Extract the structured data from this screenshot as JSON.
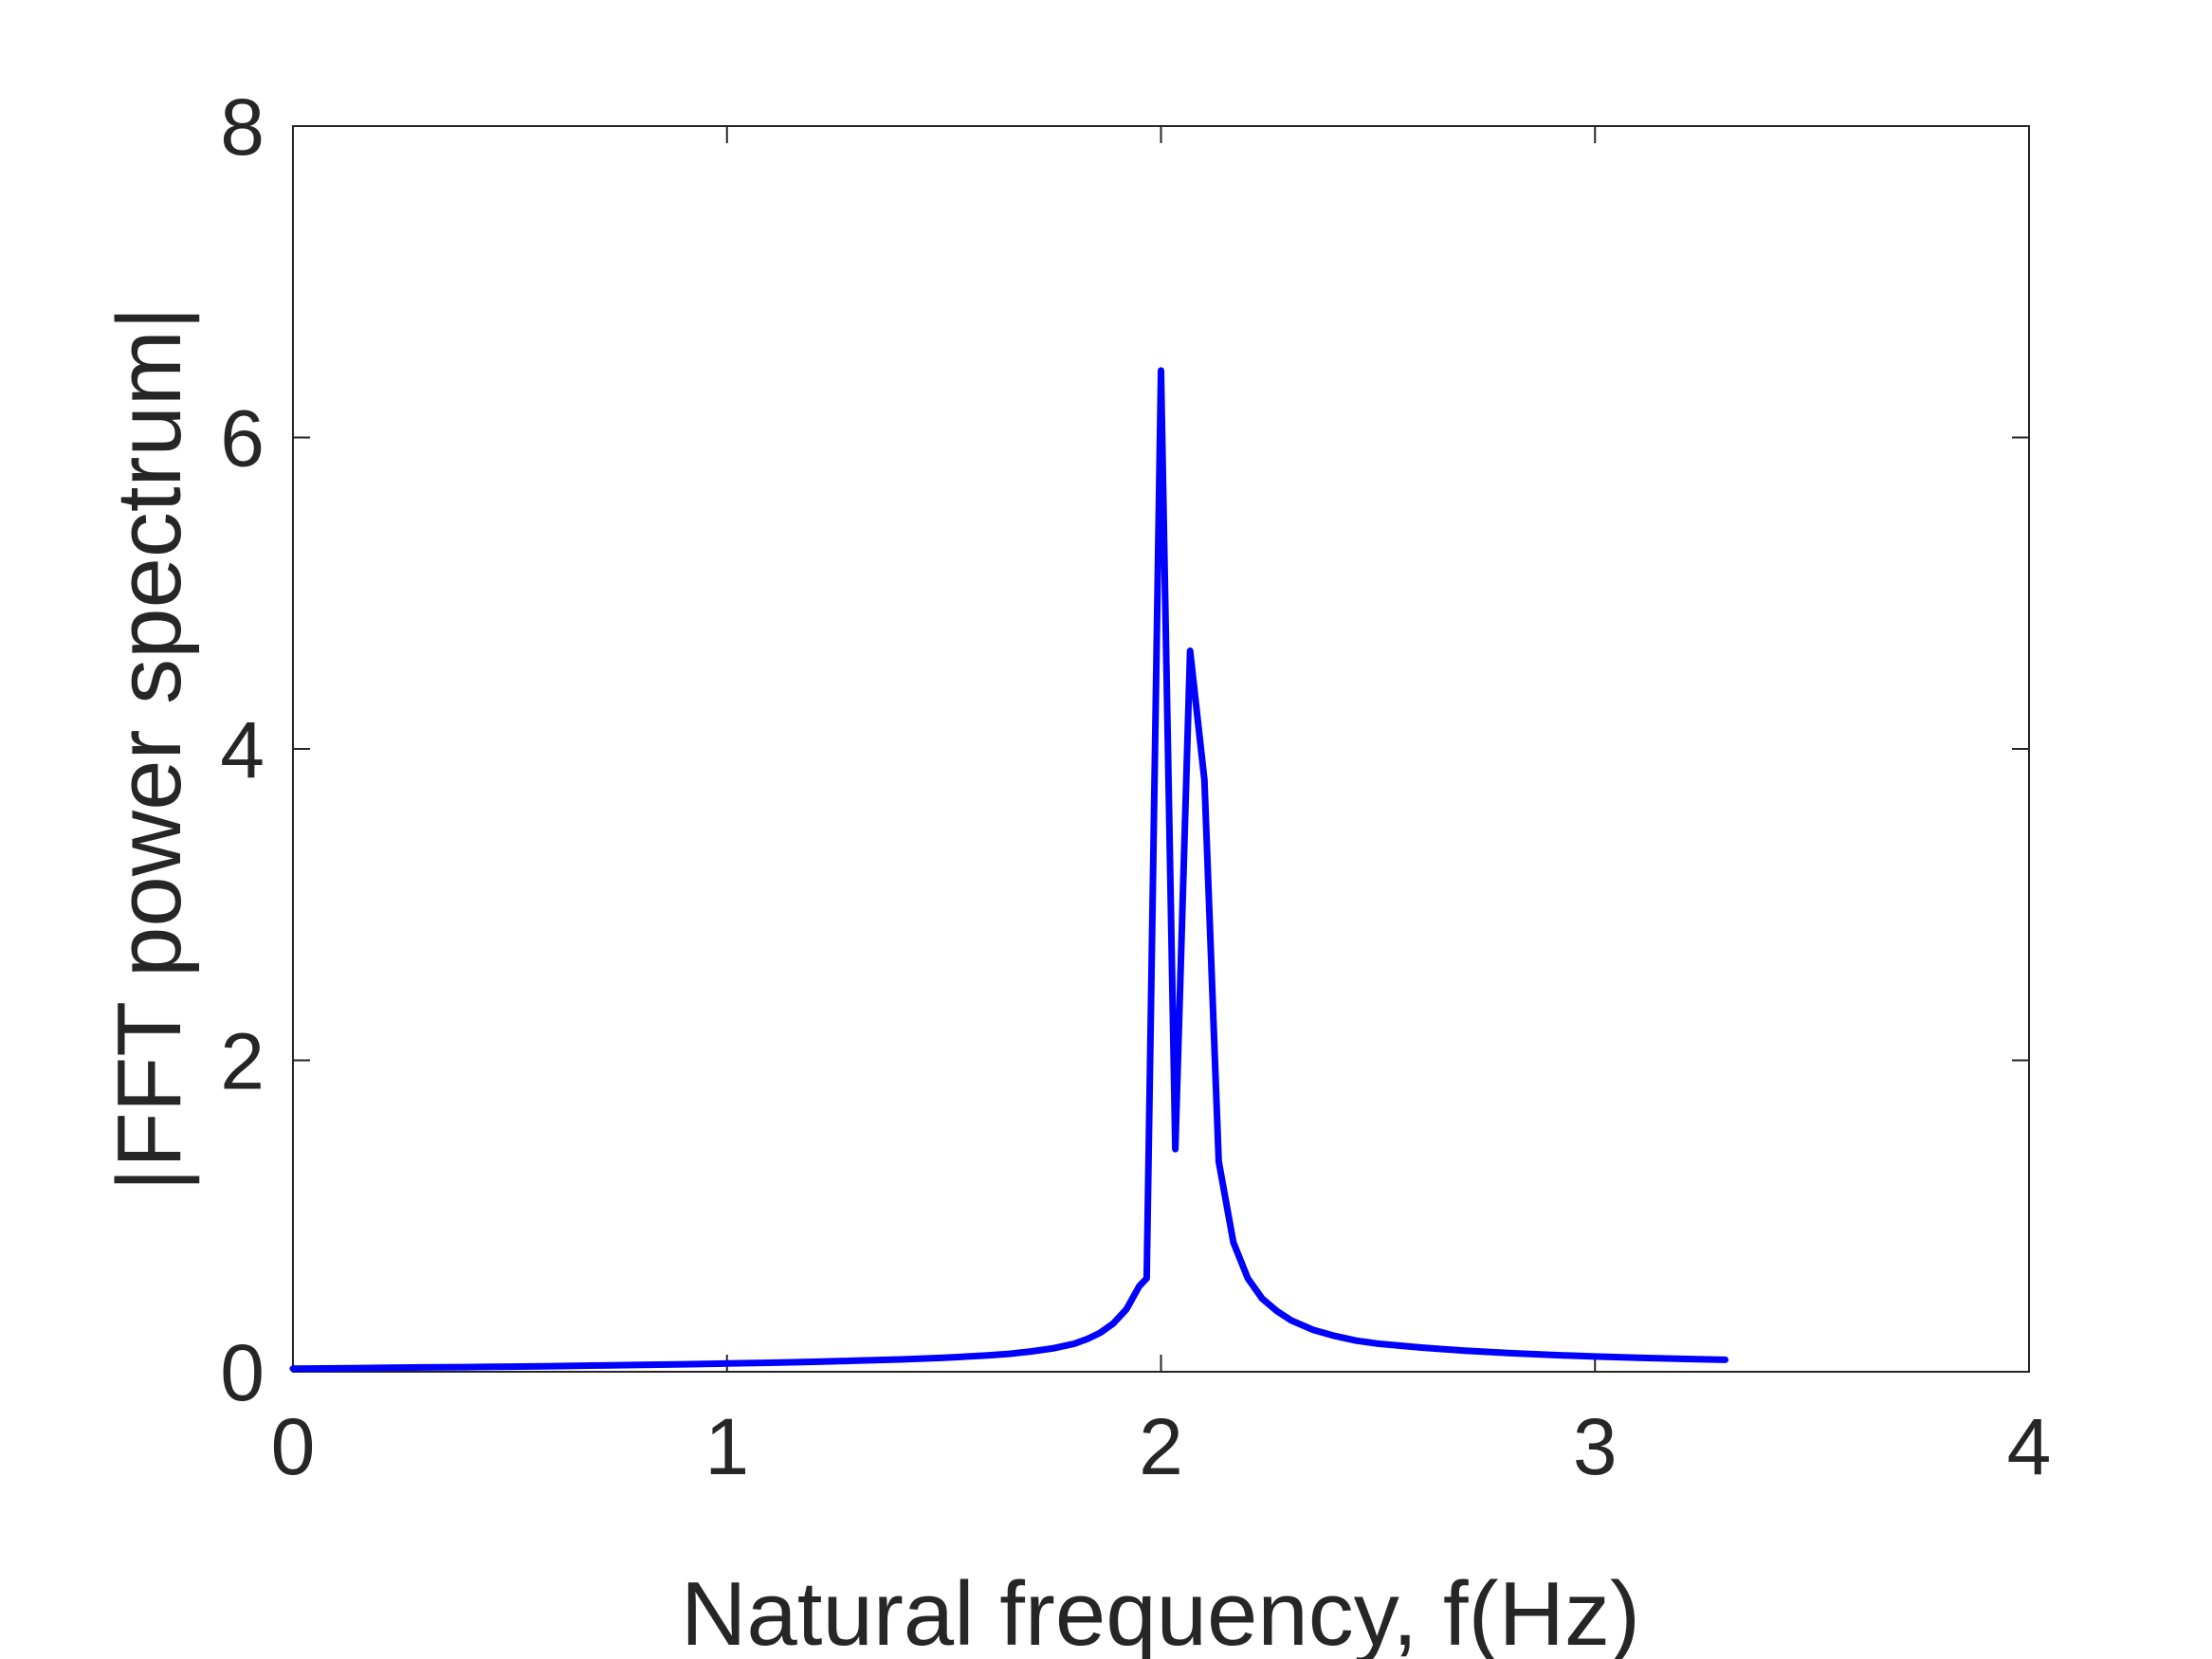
{
  "chart_data": {
    "type": "line",
    "title": "",
    "xlabel": "Natural frequency, f(Hz)",
    "ylabel": "|FFT power spectrum|",
    "xlim": [
      0,
      4
    ],
    "ylim": [
      0,
      8
    ],
    "xticks": [
      "0",
      "1",
      "2",
      "3",
      "4"
    ],
    "yticks": [
      "0",
      "2",
      "4",
      "6",
      "8"
    ],
    "grid": false,
    "line_color": "#0000ff",
    "series": [
      {
        "x": [
          0,
          0.1,
          0.2,
          0.3,
          0.4,
          0.5,
          0.6,
          0.7,
          0.8,
          0.9,
          1.0,
          1.1,
          1.2,
          1.3,
          1.4,
          1.5,
          1.6,
          1.65,
          1.7,
          1.75,
          1.8,
          1.83,
          1.86,
          1.89,
          1.92,
          1.95,
          1.967,
          2.0,
          2.033,
          2.067,
          2.1,
          2.133,
          2.167,
          2.2,
          2.233,
          2.267,
          2.3,
          2.35,
          2.4,
          2.45,
          2.5,
          2.6,
          2.7,
          2.8,
          2.9,
          3.0,
          3.1,
          3.2,
          3.3
        ],
        "y": [
          0.02,
          0.022,
          0.025,
          0.028,
          0.03,
          0.033,
          0.036,
          0.04,
          0.044,
          0.048,
          0.053,
          0.058,
          0.064,
          0.071,
          0.079,
          0.09,
          0.105,
          0.115,
          0.13,
          0.15,
          0.18,
          0.21,
          0.25,
          0.31,
          0.4,
          0.55,
          0.6,
          6.43,
          1.43,
          4.63,
          3.8,
          1.35,
          0.83,
          0.6,
          0.47,
          0.39,
          0.33,
          0.27,
          0.23,
          0.2,
          0.18,
          0.155,
          0.135,
          0.12,
          0.108,
          0.098,
          0.09,
          0.083,
          0.077
        ]
      }
    ]
  }
}
